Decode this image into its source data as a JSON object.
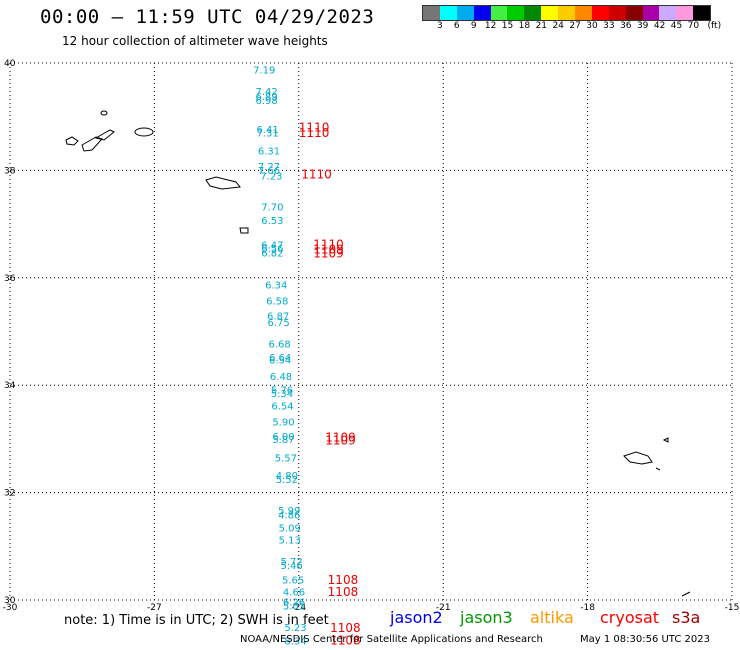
{
  "header": {
    "title": "00:00 – 11:59 UTC 04/29/2023",
    "subtitle": "12 hour collection of altimeter wave heights"
  },
  "colorbar": {
    "colors": [
      "#777777",
      "#00ffff",
      "#00aaee",
      "#0000ee",
      "#44ee44",
      "#00cc00",
      "#008800",
      "#ffff00",
      "#ffcc00",
      "#ff8800",
      "#ff0000",
      "#cc0000",
      "#880000",
      "#aa00aa",
      "#ccaaff",
      "#ff99dd",
      "#000000"
    ],
    "labels": [
      "3",
      "6",
      "9",
      "12",
      "15",
      "18",
      "21",
      "24",
      "27",
      "30",
      "33",
      "36",
      "39",
      "42",
      "45",
      "70",
      "(ft)"
    ]
  },
  "footer": {
    "note": "note:  1) Time is in UTC;  2) SWH is in feet",
    "satellites": [
      {
        "name": "jason2",
        "color": "#0000ee"
      },
      {
        "name": "jason3",
        "color": "#009900"
      },
      {
        "name": "altika",
        "color": "#ff9900"
      },
      {
        "name": "cryosat",
        "color": "#ff0000"
      },
      {
        "name": "s3a",
        "color": "#990000"
      }
    ],
    "credit": "NOAA/NESDIS Center for Satellite Applications and Research",
    "generated": "May  1 08:30:56 UTC 2023"
  },
  "chart_data": {
    "type": "scatter",
    "title": "00:00 – 11:59 UTC 04/29/2023",
    "subtitle": "12 hour collection of altimeter wave heights",
    "xlim": [
      -30,
      -15
    ],
    "ylim": [
      30,
      40
    ],
    "x_ticks": [
      "-30",
      "-27",
      "-24",
      "-21",
      "-18",
      "-15"
    ],
    "y_ticks": [
      "30",
      "32",
      "34",
      "36",
      "38",
      "40"
    ],
    "grid": true,
    "wave_heights": [
      {
        "lon": -24.95,
        "lat": 39.8,
        "label": "7.19"
      },
      {
        "lon": -24.9,
        "lat": 39.4,
        "label": "7.42"
      },
      {
        "lon": -24.9,
        "lat": 39.31,
        "label": "6.89"
      },
      {
        "lon": -24.9,
        "lat": 39.24,
        "label": "6.98"
      },
      {
        "lon": -24.88,
        "lat": 38.7,
        "label": "6.41"
      },
      {
        "lon": -24.88,
        "lat": 38.63,
        "label": "7.31"
      },
      {
        "lon": -24.85,
        "lat": 38.3,
        "label": "6.31"
      },
      {
        "lon": -24.85,
        "lat": 38.01,
        "label": "7.27"
      },
      {
        "lon": -24.85,
        "lat": 37.93,
        "label": "7.66"
      },
      {
        "lon": -24.8,
        "lat": 37.83,
        "label": "7.23"
      },
      {
        "lon": -24.78,
        "lat": 37.25,
        "label": "7.70"
      },
      {
        "lon": -24.78,
        "lat": 37.0,
        "label": "6.53"
      },
      {
        "lon": -24.78,
        "lat": 36.55,
        "label": "6.47"
      },
      {
        "lon": -24.78,
        "lat": 36.48,
        "label": "6.56"
      },
      {
        "lon": -24.78,
        "lat": 36.4,
        "label": "6.82"
      },
      {
        "lon": -24.7,
        "lat": 35.8,
        "label": "6.34"
      },
      {
        "lon": -24.68,
        "lat": 35.5,
        "label": "6.58"
      },
      {
        "lon": -24.66,
        "lat": 35.22,
        "label": "6.87"
      },
      {
        "lon": -24.65,
        "lat": 35.1,
        "label": "6.75"
      },
      {
        "lon": -24.63,
        "lat": 34.7,
        "label": "6.68"
      },
      {
        "lon": -24.62,
        "lat": 34.45,
        "label": "6.64"
      },
      {
        "lon": -24.62,
        "lat": 34.4,
        "label": "6.54"
      },
      {
        "lon": -24.6,
        "lat": 34.1,
        "label": "6.48"
      },
      {
        "lon": -24.58,
        "lat": 33.85,
        "label": "5.76"
      },
      {
        "lon": -24.58,
        "lat": 33.78,
        "label": "5.34"
      },
      {
        "lon": -24.57,
        "lat": 33.55,
        "label": "6.54"
      },
      {
        "lon": -24.55,
        "lat": 33.25,
        "label": "5.90"
      },
      {
        "lon": -24.55,
        "lat": 32.98,
        "label": "6.00"
      },
      {
        "lon": -24.55,
        "lat": 32.92,
        "label": "5.87"
      },
      {
        "lon": -24.5,
        "lat": 32.58,
        "label": "5.57"
      },
      {
        "lon": -24.48,
        "lat": 32.25,
        "label": "4.80"
      },
      {
        "lon": -24.48,
        "lat": 32.18,
        "label": "5.52"
      },
      {
        "lon": -24.43,
        "lat": 31.6,
        "label": "5.99"
      },
      {
        "lon": -24.43,
        "lat": 31.52,
        "label": "4.86"
      },
      {
        "lon": -24.42,
        "lat": 31.28,
        "label": "5.09"
      },
      {
        "lon": -24.42,
        "lat": 31.05,
        "label": "5.13"
      },
      {
        "lon": -24.38,
        "lat": 30.65,
        "label": "5.72"
      },
      {
        "lon": -24.38,
        "lat": 30.58,
        "label": "5.46"
      },
      {
        "lon": -24.35,
        "lat": 30.31,
        "label": "5.65"
      },
      {
        "lon": -24.33,
        "lat": 30.08,
        "label": "4.66"
      },
      {
        "lon": -24.33,
        "lat": 29.9,
        "label": "6.26"
      },
      {
        "lon": -24.33,
        "lat": 29.82,
        "label": "5.01"
      },
      {
        "lon": -24.3,
        "lat": 29.42,
        "label": "5.23"
      },
      {
        "lon": -24.3,
        "lat": 29.17,
        "label": "8.34"
      }
    ],
    "cycle_labels": [
      {
        "lon": -24.0,
        "lat": 38.72,
        "label": "1110"
      },
      {
        "lon": -24.0,
        "lat": 38.62,
        "label": "1110"
      },
      {
        "lon": -23.95,
        "lat": 37.85,
        "label": "1110"
      },
      {
        "lon": -23.7,
        "lat": 36.55,
        "label": "1110"
      },
      {
        "lon": -23.7,
        "lat": 36.45,
        "label": "1109"
      },
      {
        "lon": -23.7,
        "lat": 36.38,
        "label": "1109"
      },
      {
        "lon": -23.45,
        "lat": 32.95,
        "label": "1109"
      },
      {
        "lon": -23.45,
        "lat": 32.9,
        "label": "1109"
      },
      {
        "lon": -23.4,
        "lat": 30.3,
        "label": "1108"
      },
      {
        "lon": -23.4,
        "lat": 30.07,
        "label": "1108"
      },
      {
        "lon": -23.35,
        "lat": 29.4,
        "label": "1108"
      },
      {
        "lon": -23.35,
        "lat": 29.17,
        "label": "1108"
      }
    ],
    "series": [
      {
        "name": "jason2",
        "color": "#0000ee"
      },
      {
        "name": "jason3",
        "color": "#009900"
      },
      {
        "name": "altika",
        "color": "#ff9900"
      },
      {
        "name": "cryosat",
        "color": "#ff0000"
      },
      {
        "name": "s3a",
        "color": "#990000"
      }
    ]
  }
}
